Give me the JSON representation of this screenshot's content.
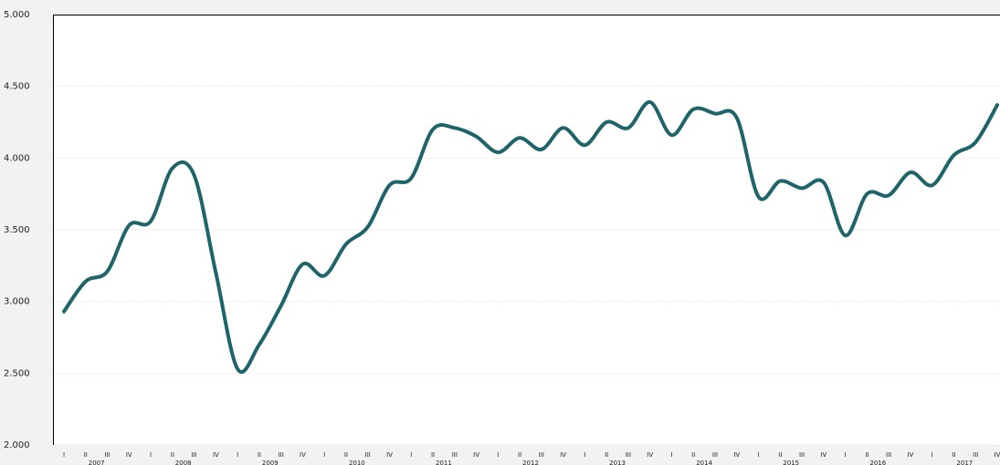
{
  "chart_data": {
    "type": "line",
    "categories": [
      "I",
      "II",
      "III",
      "IV",
      "I",
      "II",
      "III",
      "IV",
      "I",
      "II",
      "III",
      "IV",
      "I",
      "II",
      "III",
      "IV",
      "I",
      "II",
      "III",
      "IV",
      "I",
      "II",
      "III",
      "IV",
      "I",
      "II",
      "III",
      "IV",
      "I",
      "II",
      "III",
      "IV",
      "I",
      "II",
      "III",
      "IV",
      "I",
      "II",
      "III",
      "IV",
      "I",
      "II",
      "III",
      "IV"
    ],
    "years": [
      "2007",
      "2008",
      "2009",
      "2010",
      "2011",
      "2012",
      "2013",
      "2014",
      "2015",
      "2016",
      "2017"
    ],
    "series": [
      {
        "color": "#1e6468",
        "values": [
          2930,
          3140,
          3210,
          3530,
          3560,
          3930,
          3880,
          3200,
          2530,
          2700,
          2970,
          3260,
          3180,
          3400,
          3520,
          3810,
          3860,
          4200,
          4210,
          4150,
          4040,
          4140,
          4060,
          4210,
          4090,
          4250,
          4210,
          4390,
          4160,
          4340,
          4310,
          4280,
          3730,
          3840,
          3790,
          3830,
          3460,
          3750,
          3740,
          3900,
          3810,
          4020,
          4110,
          4370
        ]
      }
    ],
    "ylim": [
      2000,
      5000
    ],
    "yticks": [
      {
        "value": 2000,
        "label": "2.000"
      },
      {
        "value": 2500,
        "label": "2.500"
      },
      {
        "value": 3000,
        "label": "3.000"
      },
      {
        "value": 3500,
        "label": "3.500"
      },
      {
        "value": 4000,
        "label": "4.000"
      },
      {
        "value": 4500,
        "label": "4.500"
      },
      {
        "value": 5000,
        "label": "5.000"
      }
    ],
    "grid": true
  }
}
